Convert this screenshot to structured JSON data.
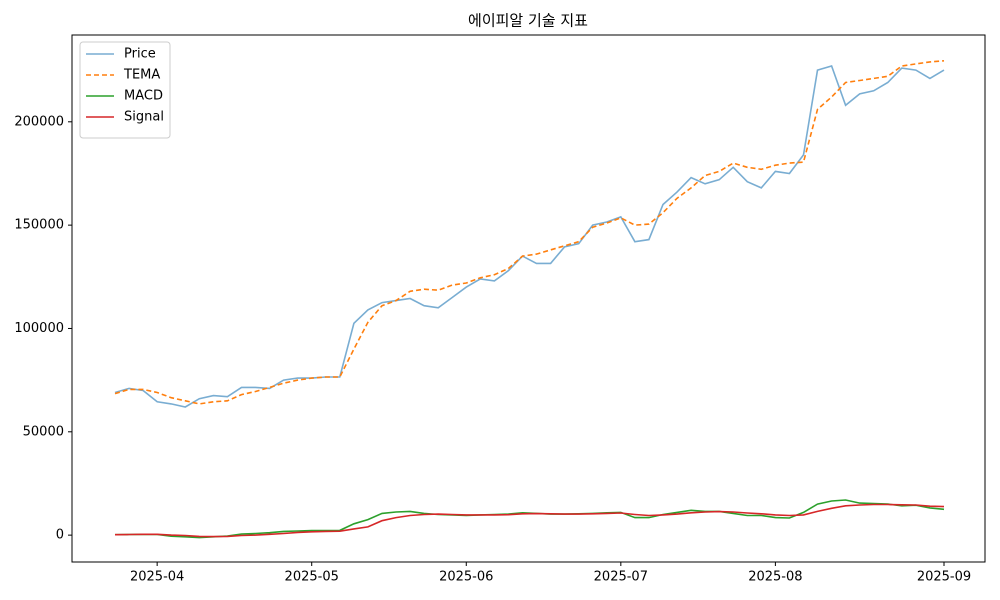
{
  "chart_data": {
    "type": "line",
    "title": "에이피알 기술 지표",
    "categories": [
      null,
      null,
      null,
      "2025-04",
      null,
      null,
      null,
      null,
      null,
      null,
      null,
      null,
      null,
      null,
      "2025-05",
      null,
      null,
      null,
      null,
      null,
      null,
      null,
      null,
      null,
      null,
      "2025-06",
      null,
      null,
      null,
      null,
      null,
      null,
      null,
      null,
      null,
      null,
      "2025-07",
      null,
      null,
      null,
      null,
      null,
      null,
      null,
      null,
      null,
      null,
      "2025-08",
      null,
      null,
      null,
      null,
      null,
      null,
      null,
      null,
      null,
      null,
      null,
      "2025-09"
    ],
    "series": [
      {
        "name": "Price",
        "color": "#1f77b4",
        "alpha": 0.6,
        "dashed": false,
        "values": [
          69000,
          71000,
          70000,
          64500,
          63500,
          62000,
          66000,
          67500,
          67000,
          71500,
          71500,
          71000,
          75000,
          76000,
          76000,
          76500,
          76500,
          102500,
          109000,
          112500,
          113500,
          114500,
          111000,
          110000,
          115000,
          120000,
          124000,
          123000,
          128000,
          135000,
          131500,
          131500,
          139500,
          141000,
          150000,
          151500,
          154000,
          142000,
          143000,
          160000,
          166000,
          173000,
          170000,
          172000,
          178000,
          171000,
          168000,
          176000,
          175000,
          184000,
          225000,
          227000,
          208000,
          213500,
          215000,
          219000,
          226000,
          225000,
          221000,
          225000
        ]
      },
      {
        "name": "TEMA",
        "color": "#ff7f0e",
        "alpha": 1,
        "dashed": true,
        "values": [
          68500,
          70500,
          70500,
          69000,
          66500,
          65000,
          63500,
          64500,
          65000,
          68000,
          69500,
          71500,
          73500,
          75000,
          76000,
          76500,
          76500,
          90000,
          103000,
          111000,
          113500,
          118000,
          119000,
          118500,
          121000,
          122000,
          124500,
          126000,
          129000,
          135000,
          136000,
          138000,
          140000,
          142000,
          149000,
          151000,
          153500,
          150000,
          150500,
          156000,
          163000,
          168000,
          174000,
          176000,
          180000,
          178000,
          177000,
          179000,
          180000,
          180500,
          206000,
          212000,
          219000,
          220000,
          221000,
          222000,
          227000,
          228000,
          229000,
          229500
        ]
      },
      {
        "name": "MACD",
        "color": "#2ca02c",
        "alpha": 1,
        "dashed": false,
        "values": [
          200,
          300,
          400,
          300,
          -500,
          -800,
          -1200,
          -800,
          -400,
          500,
          800,
          1200,
          1800,
          2000,
          2200,
          2200,
          2300,
          5500,
          7500,
          10500,
          11200,
          11500,
          10500,
          10000,
          9800,
          9500,
          9800,
          10000,
          10200,
          10800,
          10500,
          10200,
          10200,
          10300,
          10500,
          10800,
          11000,
          8500,
          8500,
          10000,
          11000,
          12000,
          11500,
          11500,
          10500,
          9500,
          9500,
          8500,
          8300,
          11000,
          15000,
          16500,
          17000,
          15500,
          15300,
          15000,
          14200,
          14500,
          13200,
          12500
        ]
      },
      {
        "name": "Signal",
        "color": "#d62728",
        "alpha": 1,
        "dashed": false,
        "values": [
          200,
          300,
          400,
          400,
          0,
          -200,
          -600,
          -700,
          -600,
          -200,
          0,
          400,
          800,
          1300,
          1600,
          1800,
          1900,
          3000,
          4000,
          7000,
          8500,
          9500,
          10000,
          10200,
          10000,
          9800,
          9800,
          9800,
          9900,
          10300,
          10400,
          10300,
          10200,
          10200,
          10300,
          10500,
          10700,
          10000,
          9500,
          9800,
          10200,
          10800,
          11200,
          11400,
          11200,
          10700,
          10300,
          9800,
          9500,
          9800,
          11500,
          13000,
          14200,
          14600,
          14800,
          14800,
          14700,
          14600,
          14000,
          13800
        ]
      }
    ],
    "ylim": [
      -13000,
      242000
    ],
    "yticks": [
      0,
      50000,
      100000,
      150000,
      200000
    ],
    "grid": false,
    "legend": "upper left"
  }
}
